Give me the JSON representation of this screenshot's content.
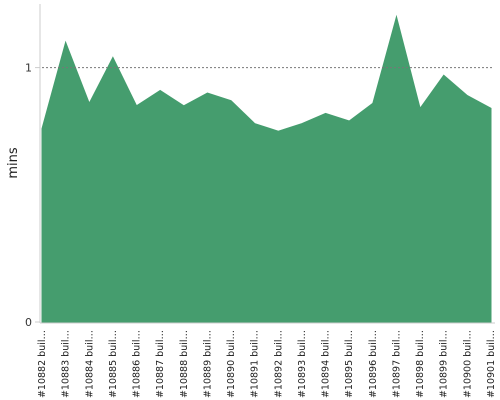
{
  "chart_data": {
    "type": "area",
    "ylabel": "mins",
    "xlabel": "",
    "title": "",
    "ylim": [
      0,
      1.25
    ],
    "y_ticks": [
      {
        "value": 0,
        "label": "0"
      },
      {
        "value": 1,
        "label": "1"
      }
    ],
    "reference_line": {
      "value": 1,
      "style": "dotted"
    },
    "colors": {
      "area": "#459d6e",
      "reference": "#777777",
      "axis": "#cccccc"
    },
    "categories": [
      "#10882 buil…",
      "#10883 buil…",
      "#10884 buil…",
      "#10885 buil…",
      "#10886 buil…",
      "#10887 buil…",
      "#10888 buil…",
      "#10889 buil…",
      "#10890 buil…",
      "#10891 buil…",
      "#10892 buil…",
      "#10893 buil…",
      "#10894 buil…",
      "#10895 buil…",
      "#10896 buil…",
      "#10897 buil…",
      "#10898 buil…",
      "#10899 buil…",
      "#10900 buil…",
      "#10901 buil…"
    ],
    "values": [
      0.76,
      1.1,
      0.86,
      1.04,
      0.85,
      0.91,
      0.85,
      0.9,
      0.87,
      0.78,
      0.75,
      0.78,
      0.82,
      0.79,
      0.86,
      1.2,
      0.84,
      0.97,
      0.89,
      0.84
    ]
  }
}
